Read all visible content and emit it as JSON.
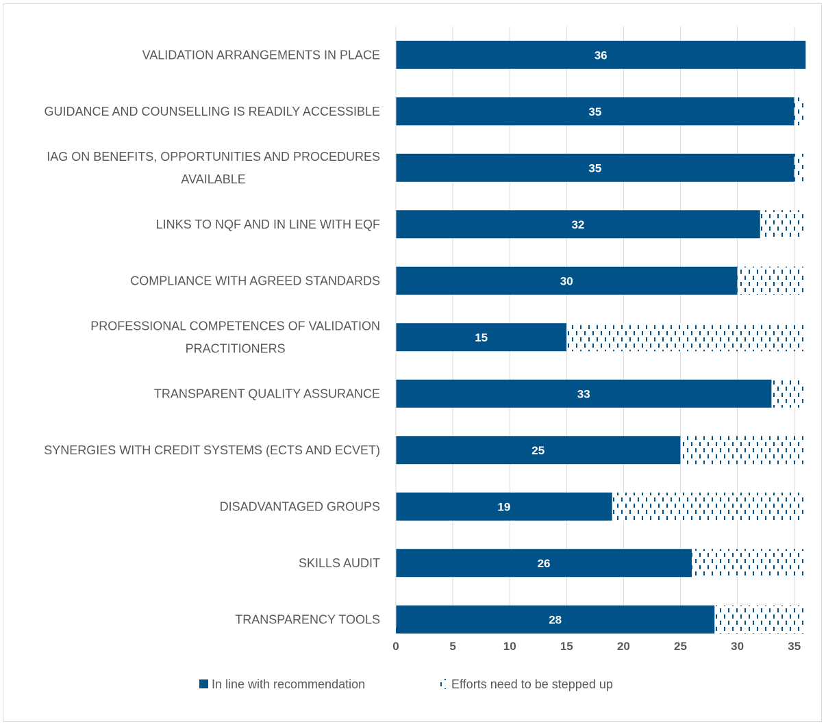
{
  "colors": {
    "primary": "#005288",
    "grid": "#d9d9d9",
    "text": "#595959",
    "background": "#ffffff"
  },
  "chart_data": {
    "type": "bar",
    "orientation": "horizontal",
    "stacked": true,
    "categories": [
      [
        "VALIDATION ARRANGEMENTS IN PLACE"
      ],
      [
        "GUIDANCE AND COUNSELLING IS READILY ACCESSIBLE"
      ],
      [
        "IAG ON BENEFITS, OPPORTUNITIES AND PROCEDURES",
        "AVAILABLE"
      ],
      [
        "LINKS TO NQF AND IN LINE WITH EQF"
      ],
      [
        "COMPLIANCE WITH AGREED STANDARDS"
      ],
      [
        "PROFESSIONAL COMPETENCES OF VALIDATION",
        "PRACTITIONERS"
      ],
      [
        "TRANSPARENT QUALITY ASSURANCE"
      ],
      [
        "SYNERGIES WITH CREDIT SYSTEMS (ECTS AND ECVET)"
      ],
      [
        "DISADVANTAGED GROUPS"
      ],
      [
        "SKILLS AUDIT"
      ],
      [
        "TRANSPARENCY TOOLS"
      ]
    ],
    "series": [
      {
        "name": "In line with recommendation",
        "values": [
          36,
          35,
          35,
          32,
          30,
          15,
          33,
          25,
          19,
          26,
          28
        ],
        "color": "#005288",
        "fill": "solid",
        "data_labels": true
      },
      {
        "name": "Efforts need to be stepped up",
        "values": [
          0,
          1,
          1,
          4,
          6,
          21,
          3,
          11,
          17,
          10,
          8
        ],
        "color": "#005288",
        "fill": "dashed-pattern",
        "data_labels": false
      }
    ],
    "xticks": [
      0,
      5,
      10,
      15,
      20,
      25,
      30,
      35
    ],
    "xlim": [
      0,
      36
    ],
    "grid": true,
    "legend_position": "bottom"
  }
}
